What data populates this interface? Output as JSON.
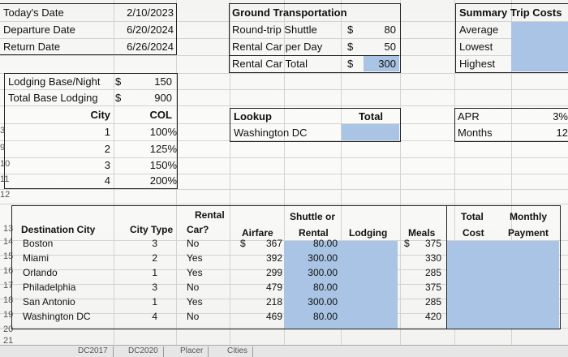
{
  "dates": {
    "todays_date_label": "Today's Date",
    "todays_date": "2/10/2023",
    "departure_label": "Departure Date",
    "departure": "6/20/2024",
    "return_label": "Return Date",
    "return": "6/26/2024"
  },
  "ground": {
    "title": "Ground Transportation",
    "shuttle_label": "Round-trip Shuttle",
    "shuttle_cur": "$",
    "shuttle": "80",
    "rental_day_label": "Rental Car per Day",
    "rental_day_cur": "$",
    "rental_day": "50",
    "rental_total_label": "Rental Car Total",
    "rental_total_cur": "$",
    "rental_total": "300"
  },
  "summary": {
    "title": "Summary Trip Costs",
    "average": "Average",
    "lowest": "Lowest",
    "highest": "Highest"
  },
  "lodging": {
    "base_label": "Lodging Base/Night",
    "base_cur": "$",
    "base": "150",
    "total_label": "Total Base Lodging",
    "total_cur": "$",
    "total": "900"
  },
  "col_table": {
    "city_header": "City",
    "col_header": "COL",
    "rows": [
      {
        "city": "1",
        "col": "100%"
      },
      {
        "city": "2",
        "col": "125%"
      },
      {
        "city": "3",
        "col": "150%"
      },
      {
        "city": "4",
        "col": "200%"
      }
    ]
  },
  "lookup": {
    "label": "Lookup",
    "total_label": "Total",
    "city": "Washington DC"
  },
  "loan": {
    "apr_label": "APR",
    "apr": "3%",
    "months_label": "Months",
    "months": "12"
  },
  "row_numbers": [
    "3",
    "9",
    "10",
    "11",
    "12",
    "13",
    "14",
    "15",
    "16",
    "17",
    "18",
    "19",
    "20",
    "21"
  ],
  "main_table": {
    "headers": {
      "destination": "Destination City",
      "city_type": "City Type",
      "rental_1": "Rental",
      "rental_2": "Car?",
      "airfare": "Airfare",
      "shuttle_1": "Shuttle or",
      "shuttle_2": "Rental",
      "lodging": "Lodging",
      "meals": "Meals",
      "total_1": "Total",
      "total_2": "Cost",
      "monthly_1": "Monthly",
      "monthly_2": "Payment"
    },
    "dollar": "$",
    "rows": [
      {
        "city": "Boston",
        "type": "3",
        "rental": "No",
        "airfare": "367",
        "shuttle": "80.00",
        "meals": "375"
      },
      {
        "city": "Miami",
        "type": "2",
        "rental": "Yes",
        "airfare": "392",
        "shuttle": "300.00",
        "meals": "330"
      },
      {
        "city": "Orlando",
        "type": "1",
        "rental": "Yes",
        "airfare": "299",
        "shuttle": "300.00",
        "meals": "285"
      },
      {
        "city": "Philadelphia",
        "type": "3",
        "rental": "No",
        "airfare": "479",
        "shuttle": "80.00",
        "meals": "375"
      },
      {
        "city": "San Antonio",
        "type": "1",
        "rental": "Yes",
        "airfare": "218",
        "shuttle": "300.00",
        "meals": "285"
      },
      {
        "city": "Washington DC",
        "type": "4",
        "rental": "No",
        "airfare": "469",
        "shuttle": "80.00",
        "meals": "420"
      }
    ]
  },
  "tabs": [
    "DC2017",
    "DC2020",
    "Placer",
    "Cities"
  ]
}
